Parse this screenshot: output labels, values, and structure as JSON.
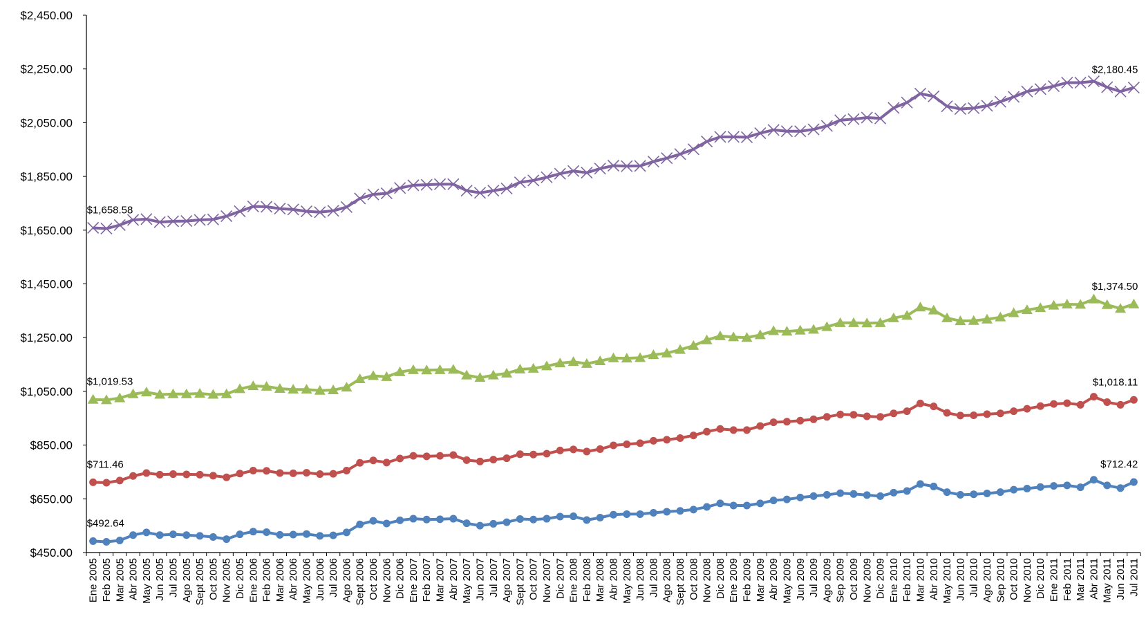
{
  "chart_data": {
    "type": "line",
    "title": "",
    "xlabel": "",
    "ylabel": "",
    "ylim": [
      450,
      2450
    ],
    "y_ticks": [
      "$450.00",
      "$650.00",
      "$850.00",
      "$1,050.00",
      "$1,250.00",
      "$1,450.00",
      "$1,650.00",
      "$1,850.00",
      "$2,050.00",
      "$2,250.00",
      "$2,450.00"
    ],
    "grid": false,
    "legend": "none",
    "categories": [
      "Ene 2005",
      "Feb 2005",
      "Mar 2005",
      "Abr 2005",
      "May 2005",
      "Jun 2005",
      "Jul 2005",
      "Ago 2005",
      "Sept 2005",
      "Oct 2005",
      "Nov 2005",
      "Dic 2005",
      "Ene 2006",
      "Feb 2006",
      "Mar 2006",
      "Abr 2006",
      "May 2006",
      "Jun 2006",
      "Jul 2006",
      "Ago 2006",
      "Sept 2006",
      "Oct 2006",
      "Nov 2006",
      "Dic 2006",
      "Ene 2007",
      "Feb 2007",
      "Mar 2007",
      "Abr 2007",
      "May 2007",
      "Jun 2007",
      "Jul 2007",
      "Ago 2007",
      "Sept 2007",
      "Oct 2007",
      "Nov 2007",
      "Dic 2007",
      "Ene 2008",
      "Feb 2008",
      "Mar 2008",
      "Abr 2008",
      "May 2008",
      "Jun 2008",
      "Jul 2008",
      "Ago 2008",
      "Sept 2008",
      "Oct 2008",
      "Nov 2008",
      "Dic 2008",
      "Ene 2009",
      "Feb 2009",
      "Mar 2009",
      "Abr 2009",
      "May 2009",
      "Jun 2009",
      "Jul 2009",
      "Ago 2009",
      "Sep 2009",
      "Oct 2009",
      "Nov 2009",
      "Dic 2009",
      "Ene 2010",
      "Feb 2010",
      "Mar 2010",
      "Abr 2010",
      "May 2010",
      "Jun 2010",
      "Jul 2010",
      "Ago 2010",
      "Sep 2010",
      "Oct 2010",
      "Nov 2010",
      "Dic 2010",
      "Ene 2011",
      "Feb 2011",
      "Mar 2011",
      "Abr 2011",
      "May 2011",
      "Jun 2011",
      "Jul 2011"
    ],
    "series": [
      {
        "color": "#4f81bd",
        "marker": "circle",
        "start_label": "$492.64",
        "end_label": "$712.42",
        "values": [
          492.64,
          490,
          495,
          515,
          525,
          515,
          518,
          515,
          512,
          508,
          500,
          518,
          528,
          526,
          516,
          517,
          519,
          512,
          514,
          525,
          555,
          568,
          558,
          570,
          576,
          573,
          574,
          576,
          559,
          550,
          557,
          563,
          575,
          573,
          576,
          584,
          585,
          571,
          580,
          591,
          593,
          593,
          598,
          602,
          605,
          610,
          620,
          633,
          625,
          625,
          633,
          644,
          648,
          655,
          660,
          665,
          671,
          668,
          664,
          660,
          673,
          679,
          705,
          696,
          675,
          665,
          667,
          670,
          675,
          684,
          688,
          694,
          698,
          700,
          693,
          721,
          700,
          690,
          712.42
        ]
      },
      {
        "color": "#c0504d",
        "marker": "circle",
        "start_label": "$711.46",
        "end_label": "$1,018.11",
        "values": [
          711.46,
          710,
          718,
          735,
          746,
          740,
          742,
          741,
          740,
          736,
          730,
          744,
          755,
          754,
          746,
          745,
          747,
          742,
          743,
          755,
          784,
          793,
          785,
          800,
          810,
          808,
          810,
          813,
          794,
          789,
          796,
          801,
          816,
          815,
          818,
          830,
          834,
          826,
          835,
          849,
          853,
          857,
          866,
          870,
          876,
          886,
          900,
          910,
          906,
          906,
          921,
          935,
          937,
          941,
          946,
          955,
          964,
          963,
          957,
          955,
          968,
          976,
          1005,
          994,
          970,
          960,
          961,
          965,
          968,
          976,
          985,
          995,
          1003,
          1006,
          1000,
          1030,
          1010,
          1000,
          1018.11
        ]
      },
      {
        "color": "#9bbb59",
        "marker": "triangle",
        "start_label": "$1,019.53",
        "end_label": "$1,374.50",
        "values": [
          1019.53,
          1018,
          1025,
          1040,
          1047,
          1038,
          1040,
          1040,
          1042,
          1038,
          1040,
          1059,
          1070,
          1068,
          1060,
          1057,
          1057,
          1053,
          1055,
          1065,
          1096,
          1108,
          1104,
          1122,
          1130,
          1129,
          1130,
          1131,
          1110,
          1101,
          1110,
          1117,
          1132,
          1135,
          1144,
          1155,
          1160,
          1153,
          1163,
          1174,
          1173,
          1175,
          1186,
          1192,
          1205,
          1220,
          1241,
          1256,
          1252,
          1250,
          1260,
          1275,
          1273,
          1277,
          1280,
          1290,
          1305,
          1305,
          1304,
          1305,
          1323,
          1332,
          1363,
          1352,
          1323,
          1312,
          1313,
          1318,
          1326,
          1342,
          1353,
          1361,
          1370,
          1374,
          1373,
          1393,
          1372,
          1358,
          1374.5
        ]
      },
      {
        "color": "#8064a2",
        "marker": "x",
        "start_label": "$1,658.58",
        "end_label": "$2,180.45",
        "values": [
          1658.58,
          1656,
          1669,
          1688,
          1691,
          1680,
          1683,
          1684,
          1688,
          1690,
          1702,
          1720,
          1738,
          1737,
          1730,
          1727,
          1720,
          1717,
          1722,
          1736,
          1768,
          1783,
          1787,
          1807,
          1817,
          1819,
          1821,
          1821,
          1797,
          1789,
          1797,
          1805,
          1828,
          1835,
          1847,
          1860,
          1870,
          1864,
          1879,
          1890,
          1888,
          1889,
          1905,
          1918,
          1933,
          1951,
          1980,
          1997,
          1997,
          1996,
          2011,
          2023,
          2018,
          2018,
          2025,
          2038,
          2059,
          2063,
          2069,
          2066,
          2105,
          2125,
          2158,
          2148,
          2111,
          2101,
          2104,
          2113,
          2128,
          2146,
          2166,
          2175,
          2186,
          2199,
          2199,
          2204,
          2182,
          2166,
          2180.45
        ]
      }
    ]
  }
}
